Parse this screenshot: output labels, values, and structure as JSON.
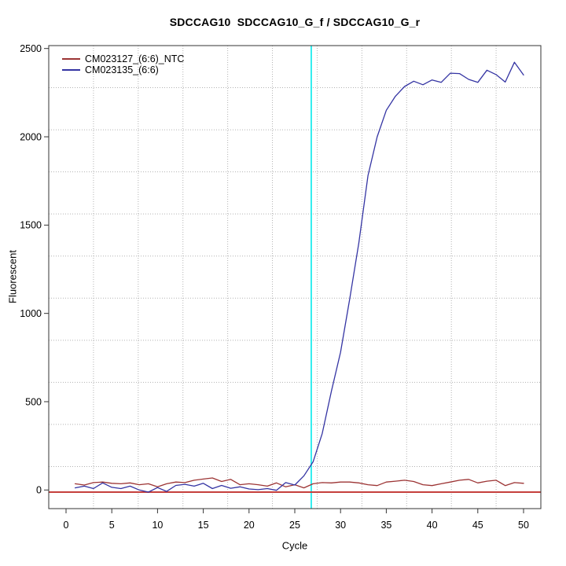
{
  "title": "SDCCAG10  SDCCAG10_G_f / SDCCAG10_G_r",
  "legend": {
    "items": [
      {
        "label": "CM023127_(6:6)_NTC",
        "color": "#9C3434"
      },
      {
        "label": "CM023135_(6:6)",
        "color": "#3434A3"
      }
    ]
  },
  "axes": {
    "x_label": "Cycle",
    "y_label": "Fluorescent",
    "x_ticks": [
      0,
      5,
      10,
      15,
      20,
      25,
      30,
      35,
      40,
      45,
      50
    ],
    "y_ticks": [
      0,
      500,
      1000,
      1500,
      2000,
      2500
    ]
  },
  "chart_data": {
    "type": "line",
    "title": "SDCCAG10  SDCCAG10_G_f / SDCCAG10_G_r",
    "xlabel": "Cycle",
    "ylabel": "Fluorescent",
    "xlim": [
      -1.9,
      51.9
    ],
    "ylim": [
      -105,
      2520
    ],
    "grid": {
      "on": true,
      "nx": 11,
      "ny": 11,
      "color": "#B2B2B2",
      "style": "dotted"
    },
    "legend_position": "top-left",
    "x": [
      1,
      2,
      3,
      4,
      5,
      6,
      7,
      8,
      9,
      10,
      11,
      12,
      13,
      14,
      15,
      16,
      17,
      18,
      19,
      20,
      21,
      22,
      23,
      24,
      25,
      26,
      27,
      28,
      29,
      30,
      31,
      32,
      33,
      34,
      35,
      36,
      37,
      38,
      39,
      40,
      41,
      42,
      43,
      44,
      45,
      46,
      47,
      48,
      49,
      50
    ],
    "series": [
      {
        "name": "CM023127_(6:6)_NTC",
        "color": "#9C3434",
        "values": [
          35,
          28,
          42,
          45,
          38,
          35,
          40,
          30,
          35,
          18,
          35,
          45,
          42,
          55,
          62,
          68,
          48,
          60,
          30,
          35,
          30,
          22,
          40,
          18,
          30,
          12,
          35,
          42,
          40,
          45,
          45,
          40,
          30,
          25,
          45,
          50,
          55,
          48,
          30,
          25,
          35,
          45,
          55,
          60,
          40,
          50,
          55,
          25,
          42,
          38
        ]
      },
      {
        "name": "CM023135_(6:6)",
        "color": "#3434A3",
        "values": [
          12,
          22,
          8,
          40,
          15,
          8,
          22,
          0,
          -12,
          14,
          -8,
          26,
          32,
          22,
          38,
          8,
          26,
          10,
          18,
          6,
          2,
          8,
          -2,
          42,
          28,
          80,
          160,
          320,
          560,
          780,
          1080,
          1400,
          1780,
          2000,
          2150,
          2230,
          2285,
          2315,
          2295,
          2322,
          2308,
          2360,
          2358,
          2325,
          2308,
          2377,
          2352,
          2310,
          2422,
          2350
        ]
      }
    ],
    "threshold_line": {
      "value": -12,
      "color": "#C5403D"
    },
    "ct_line": {
      "cycle": 26.8,
      "color": "#00E9EB"
    }
  }
}
